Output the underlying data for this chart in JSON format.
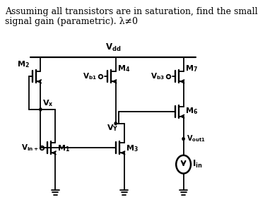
{
  "title_line1": "Assuming all transistors are in saturation, find the small",
  "title_line2": "signal gain (parametric). λ≠0",
  "bg": "#ffffff",
  "lc": "#000000"
}
